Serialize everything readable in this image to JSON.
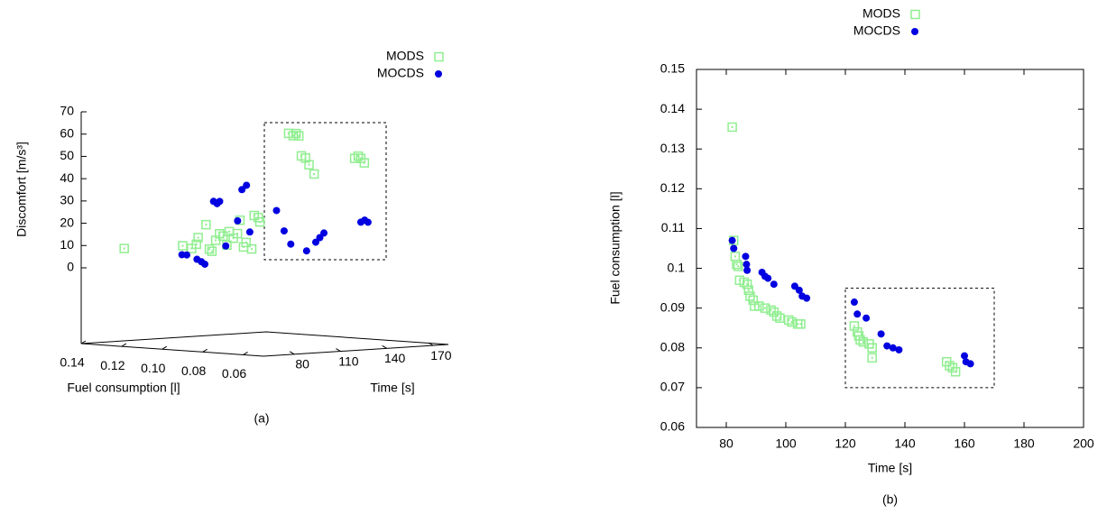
{
  "chart_data": [
    {
      "type": "scatter3d",
      "caption": "(a)",
      "xlabel": "Time [s]",
      "ylabel": "Fuel consumption [l]",
      "zlabel": "Discomfort [m/s³]",
      "xlim": [
        60,
        180
      ],
      "ylim": [
        0.14,
        0.05
      ],
      "zlim": [
        0,
        70
      ],
      "xticks": [
        80,
        110,
        140,
        170
      ],
      "yticks": [
        0.14,
        {
          "value": 0.12,
          "label": "0.12"
        },
        {
          "value": 0.1,
          "label": "0.10"
        },
        {
          "value": 0.08,
          "label": "0.08"
        },
        0.06
      ],
      "zticks": [
        0,
        10,
        20,
        30,
        40,
        50,
        60,
        70
      ],
      "series": [
        {
          "name": "MODS",
          "color": "#90ee90",
          "marker": "square",
          "x": [
            82,
            82.5,
            83,
            83.5,
            84,
            84.5,
            86,
            87,
            87.5,
            88,
            89,
            89.5,
            91,
            93,
            95,
            96,
            97,
            98,
            101,
            102,
            104,
            105,
            123,
            124,
            124.5,
            125,
            126,
            128,
            129,
            129,
            154,
            155,
            156,
            157
          ],
          "y": [
            0.1355,
            0.107,
            0.103,
            0.101,
            0.1005,
            0.097,
            0.0965,
            0.096,
            0.0945,
            0.093,
            0.092,
            0.0905,
            0.0905,
            0.09,
            0.0895,
            0.089,
            0.088,
            0.0875,
            0.087,
            0.0865,
            0.086,
            0.086,
            0.0855,
            0.084,
            0.083,
            0.082,
            0.0815,
            0.081,
            0.08,
            0.0775,
            0.0765,
            0.0755,
            0.075,
            0.074
          ],
          "z": [
            8,
            11,
            10,
            12,
            15,
            21,
            10,
            9,
            14,
            17,
            16,
            12,
            18,
            15,
            17,
            23,
            11,
            13,
            10,
            25,
            24,
            22,
            61,
            60,
            61,
            60,
            51,
            50,
            47,
            43,
            49,
            50,
            49,
            47
          ]
        },
        {
          "name": "MOCDS",
          "color": "#0000e0",
          "marker": "circle",
          "x": [
            82,
            82.5,
            86.5,
            86.8,
            87,
            92,
            93,
            94,
            96,
            103,
            104.5,
            105.5,
            107,
            123,
            124,
            127,
            132,
            134,
            136,
            138,
            160,
            160.5,
            162
          ],
          "y": [
            0.107,
            0.105,
            0.103,
            0.101,
            0.0995,
            0.099,
            0.098,
            0.0975,
            0.096,
            0.0955,
            0.0945,
            0.093,
            0.0925,
            0.0915,
            0.0885,
            0.0875,
            0.0835,
            0.0805,
            0.08,
            0.0795,
            0.078,
            0.0765,
            0.076
          ],
          "z": [
            7,
            7,
            5,
            4,
            3,
            31,
            30,
            31,
            11,
            22,
            36,
            38,
            17,
            26,
            17,
            11,
            8,
            12,
            14,
            16,
            20,
            21,
            20
          ]
        }
      ]
    },
    {
      "type": "scatter",
      "caption": "(b)",
      "xlabel": "Time [s]",
      "ylabel": "Fuel consumption [l]",
      "xlim": [
        70,
        200
      ],
      "ylim": [
        0.06,
        0.15
      ],
      "xticks": [
        80,
        100,
        120,
        140,
        160,
        180,
        200
      ],
      "yticks": [
        0.06,
        0.07,
        0.08,
        0.09,
        0.1,
        0.11,
        0.12,
        0.13,
        0.14,
        0.15
      ],
      "highlight": {
        "x": [
          120,
          170
        ],
        "y": [
          0.07,
          0.095
        ]
      },
      "series": [
        {
          "name": "MODS",
          "color": "#90ee90",
          "marker": "square",
          "x": [
            82,
            82.5,
            83,
            83.5,
            84,
            84.5,
            86,
            87,
            87.5,
            88,
            89,
            89.5,
            91,
            93,
            95,
            96,
            97,
            98,
            101,
            102,
            104,
            105,
            123,
            124,
            124.5,
            125,
            126,
            128,
            129,
            129,
            154,
            155,
            156,
            157
          ],
          "y": [
            0.1355,
            0.107,
            0.103,
            0.101,
            0.1005,
            0.097,
            0.0965,
            0.096,
            0.0945,
            0.093,
            0.092,
            0.0905,
            0.0905,
            0.09,
            0.0895,
            0.089,
            0.088,
            0.0875,
            0.087,
            0.0865,
            0.086,
            0.086,
            0.0855,
            0.084,
            0.083,
            0.082,
            0.0815,
            0.081,
            0.08,
            0.0775,
            0.0765,
            0.0755,
            0.075,
            0.074
          ]
        },
        {
          "name": "MOCDS",
          "color": "#0000e0",
          "marker": "circle",
          "x": [
            82,
            82.5,
            86.5,
            86.8,
            87,
            92,
            93,
            94,
            96,
            103,
            104.5,
            105.5,
            107,
            123,
            124,
            127,
            132,
            134,
            136,
            138,
            160,
            160.5,
            162
          ],
          "y": [
            0.107,
            0.105,
            0.103,
            0.101,
            0.0995,
            0.099,
            0.098,
            0.0975,
            0.096,
            0.0955,
            0.0945,
            0.093,
            0.0925,
            0.0915,
            0.0885,
            0.0875,
            0.0835,
            0.0805,
            0.08,
            0.0795,
            0.078,
            0.0765,
            0.076
          ]
        }
      ]
    }
  ]
}
